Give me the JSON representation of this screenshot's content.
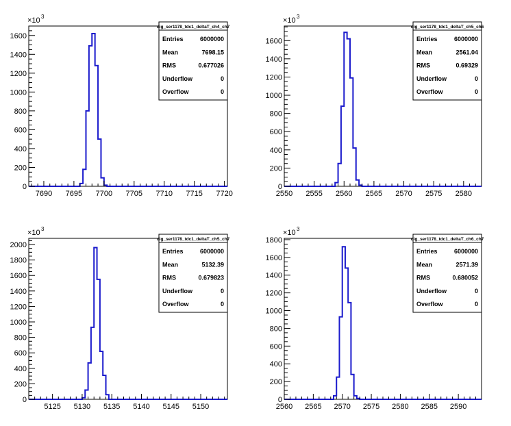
{
  "chart_data": [
    {
      "type": "histogram",
      "name": "dig_ser1178_tdc1_deltaT_ch4_ch7",
      "xlim": [
        7687.5,
        7720.5
      ],
      "ylim": [
        0,
        1700
      ],
      "y_exponent_label": "×10",
      "y_exponent": "3",
      "xticks": [
        7690,
        7695,
        7700,
        7705,
        7710,
        7715,
        7720
      ],
      "yticks": [
        0,
        200,
        400,
        600,
        800,
        1000,
        1200,
        1400,
        1600
      ],
      "bins": [
        {
          "x": 7696,
          "y": 30
        },
        {
          "x": 7696.5,
          "y": 180
        },
        {
          "x": 7697,
          "y": 800
        },
        {
          "x": 7697.5,
          "y": 1490
        },
        {
          "x": 7698,
          "y": 1620
        },
        {
          "x": 7698.5,
          "y": 1280
        },
        {
          "x": 7699,
          "y": 500
        },
        {
          "x": 7699.5,
          "y": 90
        },
        {
          "x": 7700,
          "y": 12
        }
      ],
      "stats": {
        "title": "dig_ser1178_tdc1_deltaT_ch4_ch7",
        "rows": [
          {
            "label": "Entries",
            "value": "6000000"
          },
          {
            "label": "Mean",
            "value": "7698.15"
          },
          {
            "label": "RMS",
            "value": "0.677026"
          },
          {
            "label": "Underflow",
            "value": "0"
          },
          {
            "label": "Overflow",
            "value": "0"
          }
        ]
      }
    },
    {
      "type": "histogram",
      "name": "dig_ser1178_tdc1_deltaT_ch5_ch6",
      "xlim": [
        2550,
        2583
      ],
      "ylim": [
        0,
        1760
      ],
      "y_exponent_label": "×10",
      "y_exponent": "3",
      "xticks": [
        2550,
        2555,
        2560,
        2565,
        2570,
        2575,
        2580
      ],
      "yticks": [
        0,
        200,
        400,
        600,
        800,
        1000,
        1200,
        1400,
        1600
      ],
      "bins": [
        {
          "x": 2558.5,
          "y": 40
        },
        {
          "x": 2559,
          "y": 250
        },
        {
          "x": 2559.5,
          "y": 880
        },
        {
          "x": 2560,
          "y": 1690
        },
        {
          "x": 2560.5,
          "y": 1620
        },
        {
          "x": 2561,
          "y": 1190
        },
        {
          "x": 2561.5,
          "y": 420
        },
        {
          "x": 2562,
          "y": 70
        },
        {
          "x": 2562.5,
          "y": 12
        }
      ],
      "stats": {
        "title": "dig_ser1178_tdc1_deltaT_ch5_ch6",
        "rows": [
          {
            "label": "Entries",
            "value": "6000000"
          },
          {
            "label": "Mean",
            "value": "2561.04"
          },
          {
            "label": "RMS",
            "value": "0.69329"
          },
          {
            "label": "Underflow",
            "value": "0"
          },
          {
            "label": "Overflow",
            "value": "0"
          }
        ]
      }
    },
    {
      "type": "histogram",
      "name": "dig_ser1178_tdc1_deltaT_ch5_ch7",
      "xlim": [
        5121,
        5154.5
      ],
      "ylim": [
        0,
        2080
      ],
      "y_exponent_label": "×10",
      "y_exponent": "3",
      "xticks": [
        5125,
        5130,
        5135,
        5140,
        5145,
        5150
      ],
      "yticks": [
        0,
        200,
        400,
        600,
        800,
        1000,
        1200,
        1400,
        1600,
        1800,
        2000
      ],
      "bins": [
        {
          "x": 5130,
          "y": 20
        },
        {
          "x": 5130.5,
          "y": 120
        },
        {
          "x": 5131,
          "y": 470
        },
        {
          "x": 5131.5,
          "y": 930
        },
        {
          "x": 5132,
          "y": 1960
        },
        {
          "x": 5132.5,
          "y": 1550
        },
        {
          "x": 5133,
          "y": 620
        },
        {
          "x": 5133.5,
          "y": 310
        },
        {
          "x": 5134,
          "y": 60
        }
      ],
      "stats": {
        "title": "dig_ser1178_tdc1_deltaT_ch5_ch7",
        "rows": [
          {
            "label": "Entries",
            "value": "6000000"
          },
          {
            "label": "Mean",
            "value": "5132.39"
          },
          {
            "label": "RMS",
            "value": "0.679823"
          },
          {
            "label": "Underflow",
            "value": "0"
          },
          {
            "label": "Overflow",
            "value": "0"
          }
        ]
      }
    },
    {
      "type": "histogram",
      "name": "dig_ser1178_tdc1_deltaT_ch6_ch7",
      "xlim": [
        2560,
        2594
      ],
      "ylim": [
        0,
        1815
      ],
      "y_exponent_label": "×10",
      "y_exponent": "3",
      "xticks": [
        2560,
        2565,
        2570,
        2575,
        2580,
        2585,
        2590
      ],
      "yticks": [
        0,
        200,
        400,
        600,
        800,
        1000,
        1200,
        1400,
        1600,
        1800
      ],
      "bins": [
        {
          "x": 2568.5,
          "y": 40
        },
        {
          "x": 2569,
          "y": 250
        },
        {
          "x": 2569.5,
          "y": 930
        },
        {
          "x": 2570,
          "y": 1720
        },
        {
          "x": 2570.5,
          "y": 1480
        },
        {
          "x": 2571,
          "y": 1090
        },
        {
          "x": 2571.5,
          "y": 280
        },
        {
          "x": 2572,
          "y": 40
        },
        {
          "x": 2572.5,
          "y": 10
        }
      ],
      "stats": {
        "title": "dig_ser1178_tdc1_deltaT_ch6_ch7",
        "rows": [
          {
            "label": "Entries",
            "value": "6000000"
          },
          {
            "label": "Mean",
            "value": "2571.39"
          },
          {
            "label": "RMS",
            "value": "0.680052"
          },
          {
            "label": "Underflow",
            "value": "0"
          },
          {
            "label": "Overflow",
            "value": "0"
          }
        ]
      }
    }
  ],
  "colors": {
    "line": "#1a1acc",
    "frame": "#000000",
    "background": "#ffffff"
  }
}
